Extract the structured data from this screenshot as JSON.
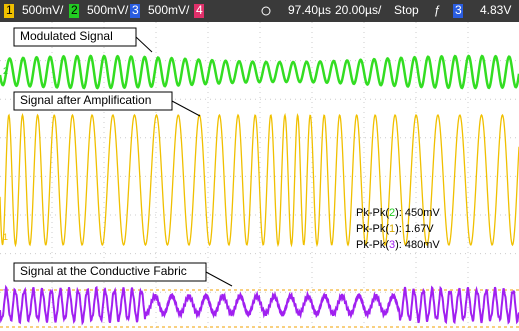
{
  "status_bar": {
    "channels": [
      {
        "number": "1",
        "scale": "500mV/"
      },
      {
        "number": "2",
        "scale": "500mV/"
      },
      {
        "number": "3",
        "scale": "500mV/"
      },
      {
        "number": "4"
      }
    ],
    "trigger_delay": "97.40µs",
    "time_scale": "20.00µs/",
    "run_state": "Stop",
    "trigger_slope": "ƒ",
    "trigger_channel": "3",
    "trigger_level": "4.83V"
  },
  "labels": {
    "modulated": "Modulated Signal",
    "amplified": "Signal after Amplification",
    "fabric": "Signal at the Conductive Fabric"
  },
  "side_markers": [
    "2",
    "1",
    "T"
  ],
  "measurements": [
    {
      "prefix": "Pk-Pk(",
      "channel": "2",
      "suffix": "): 450mV"
    },
    {
      "prefix": "Pk-Pk(",
      "channel": "1",
      "suffix": "): 1.67V"
    },
    {
      "prefix": "Pk-Pk(",
      "channel": "3",
      "suffix": "): 480mV"
    }
  ]
}
